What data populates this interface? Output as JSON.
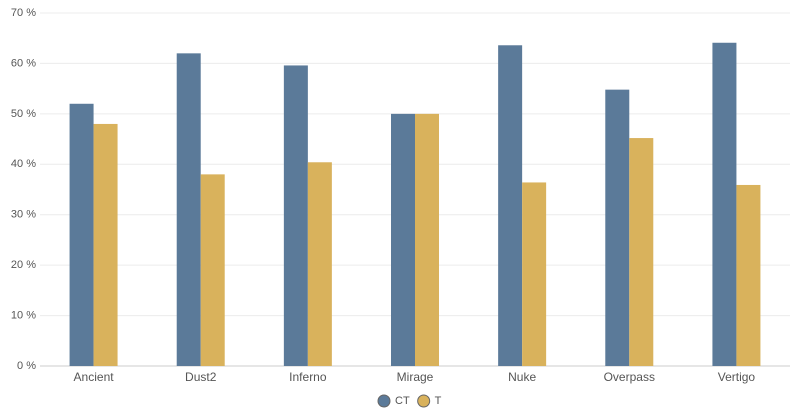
{
  "chart_data": {
    "type": "bar",
    "categories": [
      "Ancient",
      "Dust2",
      "Inferno",
      "Mirage",
      "Nuke",
      "Overpass",
      "Vertigo"
    ],
    "series": [
      {
        "name": "CT",
        "color": "#5b7a99",
        "values": [
          52,
          62,
          59.6,
          50,
          63.6,
          54.8,
          64.1
        ]
      },
      {
        "name": "T",
        "color": "#d9b25c",
        "values": [
          48,
          38,
          40.4,
          50,
          36.4,
          45.2,
          35.9
        ]
      }
    ],
    "ylim": [
      0,
      70
    ],
    "yticks": [
      {
        "value": 0,
        "label": "0 %"
      },
      {
        "value": 10,
        "label": "10 %"
      },
      {
        "value": 20,
        "label": "20 %"
      },
      {
        "value": 30,
        "label": "30 %"
      },
      {
        "value": 40,
        "label": "40 %"
      },
      {
        "value": 50,
        "label": "50 %"
      },
      {
        "value": 60,
        "label": "60 %"
      },
      {
        "value": 70,
        "label": "70 %"
      }
    ],
    "grid": true
  }
}
